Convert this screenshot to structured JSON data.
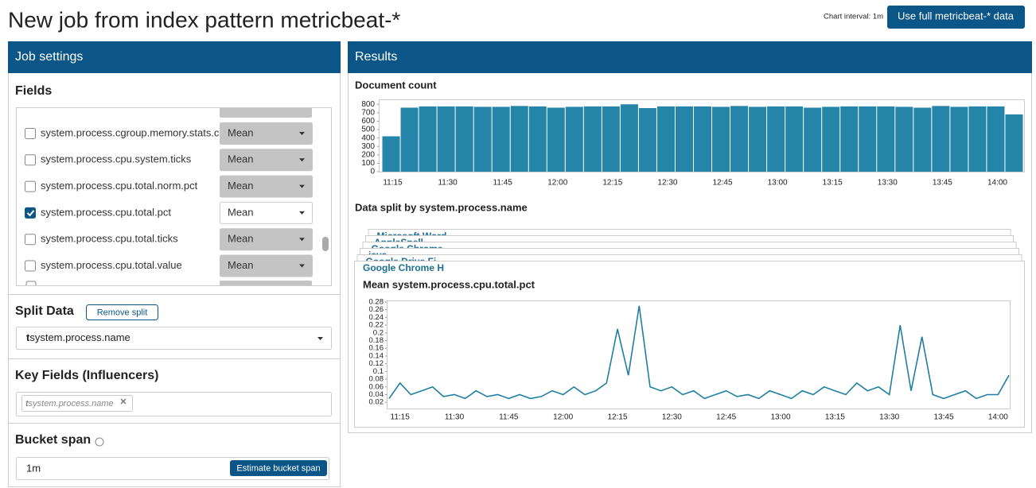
{
  "header": {
    "title": "New job from index pattern metricbeat-*",
    "chart_interval": "Chart interval: 1m",
    "button": "Use full metricbeat-* data"
  },
  "job_settings": {
    "title": "Job settings",
    "fields": {
      "title": "Fields",
      "items": [
        {
          "name": "system.process.cgroup.memory.stats.c",
          "aggregation": "Mean",
          "checked": false
        },
        {
          "name": "system.process.cpu.system.ticks",
          "aggregation": "Mean",
          "checked": false
        },
        {
          "name": "system.process.cpu.total.norm.pct",
          "aggregation": "Mean",
          "checked": false
        },
        {
          "name": "system.process.cpu.total.pct",
          "aggregation": "Mean",
          "checked": true
        },
        {
          "name": "system.process.cpu.total.ticks",
          "aggregation": "Mean",
          "checked": false
        },
        {
          "name": "system.process.cpu.total.value",
          "aggregation": "Mean",
          "checked": false
        }
      ]
    },
    "split_data": {
      "title": "Split Data",
      "remove_button": "Remove split",
      "type_icon": "t",
      "value": "system.process.name"
    },
    "key_fields": {
      "title": "Key Fields (Influencers)",
      "items": [
        {
          "type_icon": "t",
          "name": "system.process.name"
        }
      ]
    },
    "bucket_span": {
      "title": "Bucket span",
      "value": "1m",
      "button": "Estimate bucket span"
    }
  },
  "results": {
    "title": "Results",
    "split_title": "Data split by system.process.name",
    "split_cards": [
      "Microsoft Word",
      "AppleSpell",
      "Google Chrome",
      "java",
      "Google Drive Fi",
      "Google Chrome H"
    ]
  },
  "chart_data": [
    {
      "type": "bar",
      "title": "Document count",
      "color": "#2585a8",
      "categories": [
        "11:15",
        null,
        null,
        "11:30",
        null,
        null,
        "11:45",
        null,
        null,
        "12:00",
        null,
        null,
        "12:15",
        null,
        null,
        "12:30",
        null,
        null,
        "12:45",
        null,
        null,
        "13:00",
        null,
        null,
        "13:15",
        null,
        null,
        "13:30",
        null,
        null,
        "13:45",
        null,
        null,
        "14:00",
        null
      ],
      "values": [
        420,
        760,
        775,
        775,
        775,
        770,
        770,
        780,
        775,
        760,
        770,
        775,
        775,
        800,
        755,
        775,
        775,
        775,
        770,
        780,
        770,
        775,
        775,
        760,
        770,
        775,
        775,
        775,
        770,
        760,
        780,
        770,
        775,
        775,
        680
      ],
      "ylim": [
        0,
        840
      ],
      "yticks": [
        0,
        100,
        200,
        300,
        400,
        500,
        600,
        700,
        800
      ]
    },
    {
      "type": "line",
      "title": "Mean system.process.cpu.total.pct",
      "color": "#1f7fa3",
      "categories": [
        null,
        "11:15",
        null,
        null,
        null,
        null,
        "11:30",
        null,
        null,
        null,
        null,
        "11:45",
        null,
        null,
        null,
        null,
        "12:00",
        null,
        null,
        null,
        null,
        "12:15",
        null,
        null,
        null,
        null,
        "12:30",
        null,
        null,
        null,
        null,
        "12:45",
        null,
        null,
        null,
        null,
        "13:00",
        null,
        null,
        null,
        null,
        "13:15",
        null,
        null,
        null,
        null,
        "13:30",
        null,
        null,
        null,
        null,
        "13:45",
        null,
        null,
        null,
        null,
        "14:00",
        null
      ],
      "values": [
        0.03,
        0.07,
        0.04,
        0.05,
        0.06,
        0.035,
        0.04,
        0.03,
        0.05,
        0.035,
        0.04,
        0.03,
        0.04,
        0.03,
        0.035,
        0.05,
        0.04,
        0.06,
        0.04,
        0.05,
        0.07,
        0.21,
        0.09,
        0.27,
        0.06,
        0.05,
        0.06,
        0.04,
        0.05,
        0.03,
        0.04,
        0.05,
        0.035,
        0.04,
        0.03,
        0.05,
        0.04,
        0.03,
        0.05,
        0.04,
        0.06,
        0.05,
        0.04,
        0.07,
        0.05,
        0.06,
        0.04,
        0.22,
        0.05,
        0.19,
        0.04,
        0.03,
        0.04,
        0.05,
        0.03,
        0.04,
        0.04,
        0.09
      ],
      "ylim": [
        0.004,
        0.284
      ],
      "yticks": [
        0.02,
        0.04,
        0.06,
        0.08,
        0.1,
        0.12,
        0.14,
        0.16,
        0.18,
        0.2,
        0.22,
        0.24,
        0.26,
        0.28
      ]
    }
  ]
}
